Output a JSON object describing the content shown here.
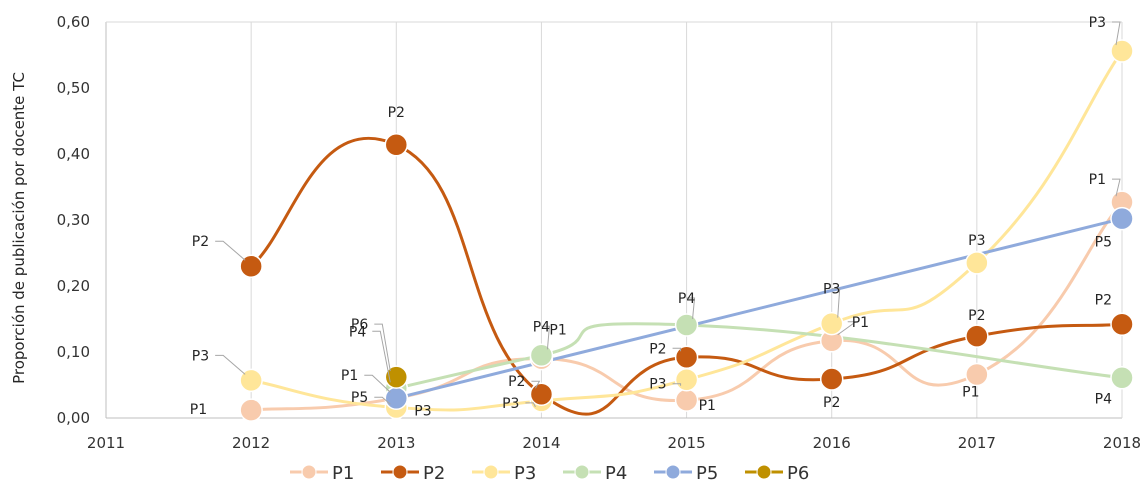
{
  "chart_data": {
    "type": "line",
    "title": "",
    "xlabel": "",
    "ylabel": "Proporción de publicación por docente TC",
    "x": [
      2011,
      2012,
      2013,
      2014,
      2015,
      2016,
      2017,
      2018
    ],
    "x_tick_labels": [
      "2011",
      "2012",
      "2013",
      "2014",
      "2015",
      "2016",
      "2017",
      "2018"
    ],
    "y_tick_labels": [
      "0,00",
      "0,10",
      "0,20",
      "0,30",
      "0,40",
      "0,50",
      "0,60"
    ],
    "xlim": [
      2011,
      2018
    ],
    "ylim": [
      0,
      0.6
    ],
    "grid": "vertical",
    "legend_position": "bottom",
    "series": [
      {
        "name": "P1",
        "color": "#F8CBAD",
        "smooth": true,
        "points": [
          [
            2012,
            0.012
          ],
          [
            2013,
            0.03
          ],
          [
            2014,
            0.09
          ],
          [
            2015,
            0.027
          ],
          [
            2016,
            0.117
          ],
          [
            2017,
            0.066
          ],
          [
            2018,
            0.327
          ]
        ]
      },
      {
        "name": "P2",
        "color": "#C55A11",
        "smooth": true,
        "points": [
          [
            2012,
            0.23
          ],
          [
            2013,
            0.414
          ],
          [
            2014,
            0.036
          ],
          [
            2015,
            0.092
          ],
          [
            2016,
            0.059
          ],
          [
            2017,
            0.124
          ],
          [
            2018,
            0.142
          ]
        ]
      },
      {
        "name": "P3",
        "color": "#FFE699",
        "smooth": true,
        "points": [
          [
            2012,
            0.057
          ],
          [
            2013,
            0.016
          ],
          [
            2014,
            0.026
          ],
          [
            2015,
            0.058
          ],
          [
            2016,
            0.143
          ],
          [
            2017,
            0.235
          ],
          [
            2018,
            0.556
          ]
        ]
      },
      {
        "name": "P4",
        "color": "#C5E0B4",
        "smooth": true,
        "points": [
          [
            2013,
            0.045
          ],
          [
            2014,
            0.095
          ],
          [
            2015,
            0.141
          ],
          [
            2018,
            0.061
          ]
        ]
      },
      {
        "name": "P5",
        "color": "#8FAADC",
        "smooth": false,
        "points": [
          [
            2013,
            0.03
          ],
          [
            2018,
            0.302
          ]
        ]
      },
      {
        "name": "P6",
        "color": "#BF9000",
        "smooth": false,
        "points": [
          [
            2013,
            0.062
          ]
        ]
      }
    ]
  }
}
